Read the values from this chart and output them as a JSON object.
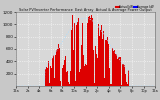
{
  "title": "Solar PV/Inverter Performance  East Array  Actual & Average Power Output",
  "bg_color": "#c8c8c8",
  "plot_bg": "#d8d8d8",
  "grid_color": "#ffffff",
  "bar_color": "#dd0000",
  "avg_line_color": "#aaddff",
  "ylim": [
    0,
    1200
  ],
  "xlim": [
    0,
    288
  ],
  "n_points": 288,
  "yticks": [
    200,
    400,
    600,
    800,
    1000,
    1200
  ],
  "ytick_labels": [
    "200",
    "400",
    "600",
    "800",
    "1000",
    "1200"
  ],
  "xtick_positions": [
    0,
    24,
    48,
    72,
    96,
    120,
    144,
    168,
    192,
    216,
    240,
    264,
    287
  ],
  "xtick_labels": [
    "12a",
    "2a",
    "4a",
    "6a",
    "8a",
    "10a",
    "12p",
    "2p",
    "4p",
    "6p",
    "8p",
    "10p",
    "12a"
  ],
  "legend_entries": [
    "Actual kW",
    "Average kW"
  ],
  "legend_colors": [
    "#dd0000",
    "#0000ff"
  ],
  "legend_line_colors": [
    "#dd0000",
    "#0000ff"
  ]
}
